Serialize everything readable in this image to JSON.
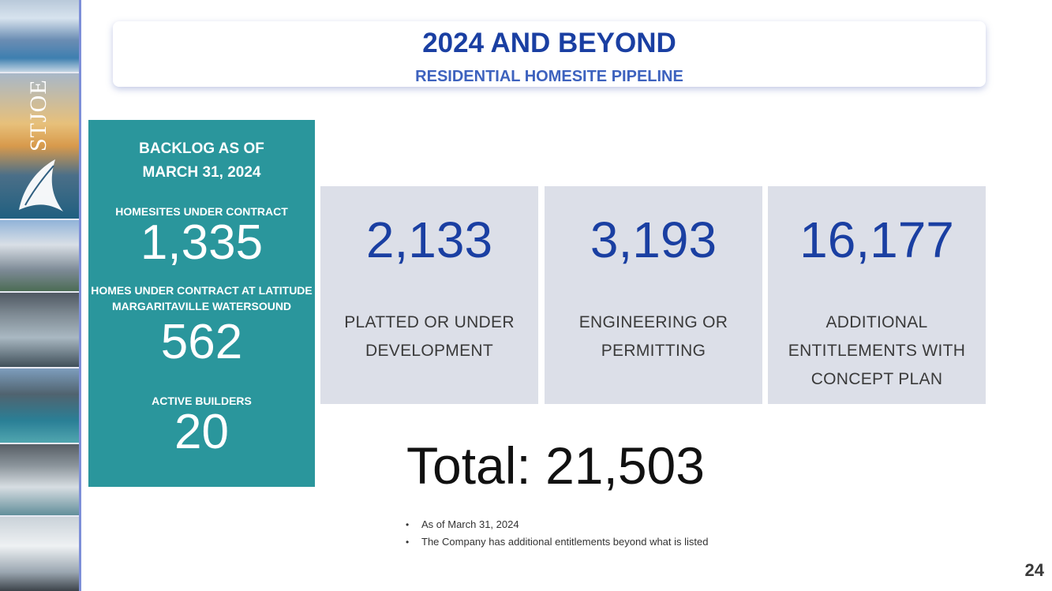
{
  "header": {
    "title": "2024 AND BEYOND",
    "subtitle": "RESIDENTIAL HOMESITE PIPELINE"
  },
  "brand": {
    "logo_text": "STJOE",
    "accent_color": "#1a3fa2",
    "teal_color": "#2a969c"
  },
  "backlog": {
    "heading_line1": "BACKLOG AS OF",
    "heading_line2": "MARCH 31, 2024",
    "items": [
      {
        "label_line1": "HOMESITES UNDER CONTRACT",
        "label_line2": "",
        "value": "1,335"
      },
      {
        "label_line1": "HOMES UNDER CONTRACT AT LATITUDE",
        "label_line2": "MARGARITAVILLE WATERSOUND",
        "value": "562"
      },
      {
        "label_line1": "ACTIVE BUILDERS",
        "label_line2": "",
        "value": "20"
      }
    ]
  },
  "pipeline": [
    {
      "value": "2,133",
      "label_lines": [
        "PLATTED OR UNDER",
        "DEVELOPMENT"
      ]
    },
    {
      "value": "3,193",
      "label_lines": [
        "ENGINEERING OR",
        "PERMITTING"
      ]
    },
    {
      "value": "16,177",
      "label_lines": [
        "ADDITIONAL",
        "ENTITLEMENTS WITH",
        "CONCEPT PLAN"
      ]
    }
  ],
  "total": "Total: 21,503",
  "notes": [
    "As of March 31, 2024",
    "The Company has additional entitlements beyond what is listed"
  ],
  "page_number": "24",
  "photo_strip": {
    "icons": [
      "flag-photo",
      "sunset-photo",
      "house-photo",
      "patio-photo",
      "pool-photo",
      "interior-photo",
      "living-room-photo"
    ]
  }
}
